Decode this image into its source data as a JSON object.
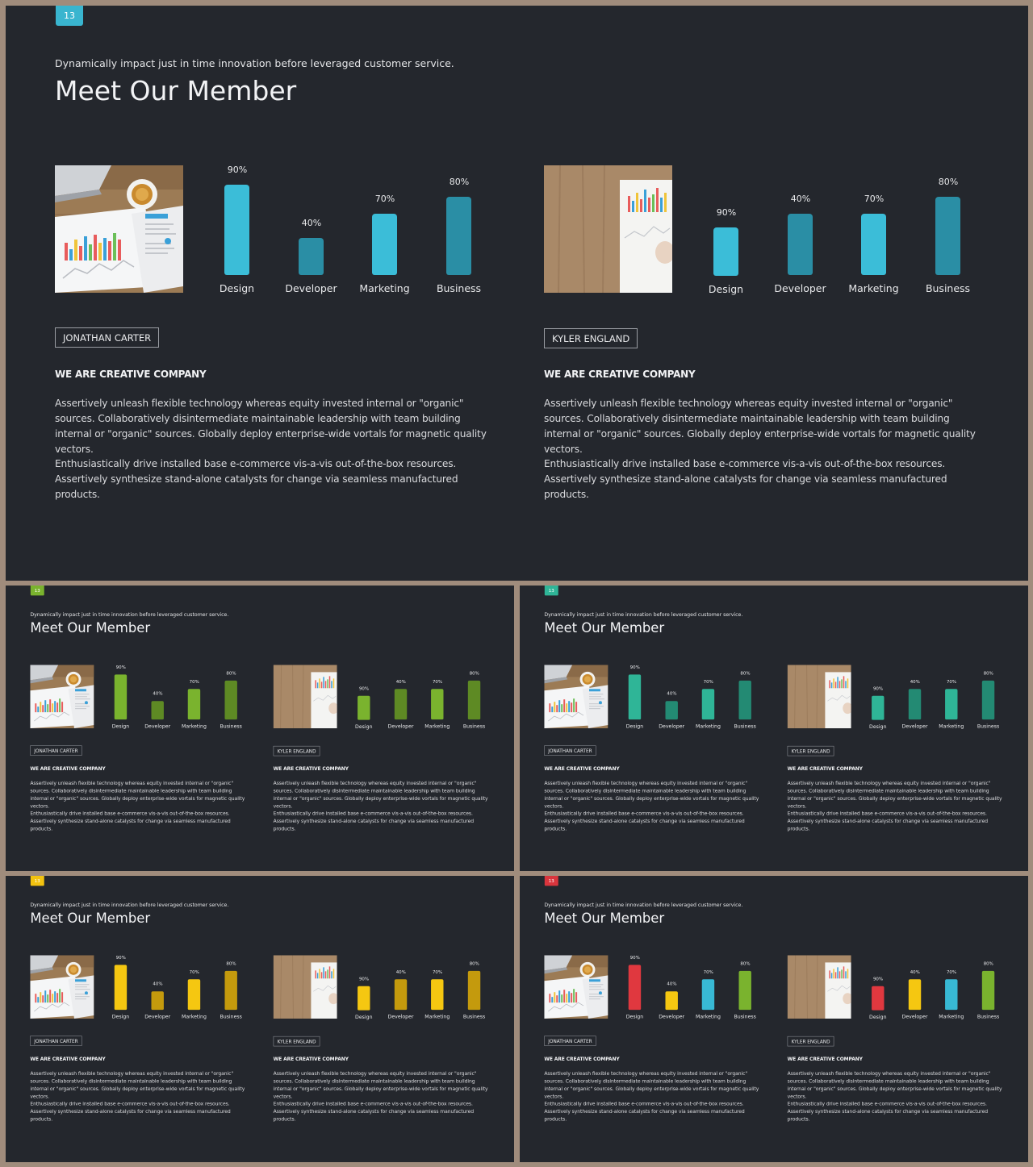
{
  "slides": [
    {
      "number": "13",
      "badge_color": "#39b5cf",
      "subtitle": "Dynamically impact just in time innovation  before leveraged customer service.",
      "title": "Meet Our Member",
      "members": [
        {
          "name": "JONATHAN CARTER",
          "company": "WE ARE CREATIVE COMPANY",
          "paragraph1": "Assertively unleash flexible technology whereas equity invested internal or \"organic\" sources. Collaboratively disintermediate maintainable leadership with team building internal or \"organic\" sources. Globally deploy enterprise-wide vortals for magnetic quality vectors.",
          "paragraph2": "Enthusiastically drive installed base e-commerce vis-a-vis out-of-the-box resources. Assertively synthesize stand-alone catalysts for change via seamless manufactured products.",
          "photo_icon": "laptop-coffee-report-photo",
          "chart_data": {
            "type": "bar",
            "categories": [
              "Design",
              "Developer",
              "Marketing",
              "Business"
            ],
            "values": [
              90,
              40,
              70,
              80
            ],
            "value_labels": [
              "90%",
              "40%",
              "70%",
              "80%"
            ],
            "colors": [
              "#3bbdd8",
              "#2a8ea5",
              "#3bbdd8",
              "#2a8ea5"
            ]
          }
        },
        {
          "name": "KYLER ENGLAND",
          "company": "WE ARE CREATIVE COMPANY",
          "paragraph1": "Assertively unleash flexible technology whereas equity invested internal or \"organic\" sources. Collaboratively disintermediate maintainable leadership with team building internal or \"organic\" sources. Globally deploy enterprise-wide vortals for magnetic quality vectors.",
          "paragraph2": "Enthusiastically drive installed base e-commerce vis-a-vis out-of-the-box resources. Assertively synthesize stand-alone catalysts for change via seamless manufactured products.",
          "photo_icon": "wood-desk-report-photo",
          "chart_data": {
            "type": "bar",
            "categories": [
              "Design",
              "Developer",
              "Marketing",
              "Business"
            ],
            "values": [
              90,
              40,
              70,
              80
            ],
            "value_labels": [
              "90%",
              "40%",
              "70%",
              "80%"
            ],
            "colors": [
              "#3bbdd8",
              "#2a8ea5",
              "#3bbdd8",
              "#2a8ea5"
            ]
          }
        }
      ]
    },
    {
      "number": "13",
      "badge_color": "#7ab32e",
      "subtitle": "Dynamically impact just in time innovation  before leveraged customer service.",
      "title": "Meet Our Member",
      "members": [
        {
          "name": "JONATHAN CARTER",
          "company": "WE ARE CREATIVE COMPANY",
          "paragraph1": "Assertively unleash flexible technology whereas equity invested internal or \"organic\" sources. Collaboratively disintermediate maintainable leadership with team building internal or \"organic\" sources. Globally deploy enterprise-wide vortals for magnetic quality vectors.",
          "paragraph2": "Enthusiastically drive installed base e-commerce vis-a-vis out-of-the-box resources. Assertively synthesize stand-alone catalysts for change via seamless manufactured products.",
          "photo_icon": "laptop-coffee-report-photo",
          "chart_data": {
            "type": "bar",
            "categories": [
              "Design",
              "Developer",
              "Marketing",
              "Business"
            ],
            "values": [
              90,
              40,
              70,
              80
            ],
            "value_labels": [
              "90%",
              "40%",
              "70%",
              "80%"
            ],
            "colors": [
              "#7ab32e",
              "#5e8a24",
              "#7ab32e",
              "#5e8a24"
            ]
          }
        },
        {
          "name": "KYLER ENGLAND",
          "company": "WE ARE CREATIVE COMPANY",
          "paragraph1": "Assertively unleash flexible technology whereas equity invested internal or \"organic\" sources. Collaboratively disintermediate maintainable leadership with team building internal or \"organic\" sources. Globally deploy enterprise-wide vortals for magnetic quality vectors.",
          "paragraph2": "Enthusiastically drive installed base e-commerce vis-a-vis out-of-the-box resources. Assertively synthesize stand-alone catalysts for change via seamless manufactured products.",
          "photo_icon": "wood-desk-report-photo",
          "chart_data": {
            "type": "bar",
            "categories": [
              "Design",
              "Developer",
              "Marketing",
              "Business"
            ],
            "values": [
              90,
              40,
              70,
              80
            ],
            "value_labels": [
              "90%",
              "40%",
              "70%",
              "80%"
            ],
            "colors": [
              "#7ab32e",
              "#5e8a24",
              "#7ab32e",
              "#5e8a24"
            ]
          }
        }
      ]
    },
    {
      "number": "13",
      "badge_color": "#2fb597",
      "subtitle": "Dynamically impact just in time innovation  before leveraged customer service.",
      "title": "Meet Our Member",
      "members": [
        {
          "name": "JONATHAN CARTER",
          "company": "WE ARE CREATIVE COMPANY",
          "paragraph1": "Assertively unleash flexible technology whereas equity invested internal or \"organic\" sources. Collaboratively disintermediate maintainable leadership with team building internal or \"organic\" sources. Globally deploy enterprise-wide vortals for magnetic quality vectors.",
          "paragraph2": "Enthusiastically drive installed base e-commerce vis-a-vis out-of-the-box resources. Assertively synthesize stand-alone catalysts for change via seamless manufactured products.",
          "photo_icon": "laptop-coffee-report-photo",
          "chart_data": {
            "type": "bar",
            "categories": [
              "Design",
              "Developer",
              "Marketing",
              "Business"
            ],
            "values": [
              90,
              40,
              70,
              80
            ],
            "value_labels": [
              "90%",
              "40%",
              "70%",
              "80%"
            ],
            "colors": [
              "#2fb597",
              "#238a73",
              "#2fb597",
              "#238a73"
            ]
          }
        },
        {
          "name": "KYLER ENGLAND",
          "company": "WE ARE CREATIVE COMPANY",
          "paragraph1": "Assertively unleash flexible technology whereas equity invested internal or \"organic\" sources. Collaboratively disintermediate maintainable leadership with team building internal or \"organic\" sources. Globally deploy enterprise-wide vortals for magnetic quality vectors.",
          "paragraph2": "Enthusiastically drive installed base e-commerce vis-a-vis out-of-the-box resources. Assertively synthesize stand-alone catalysts for change via seamless manufactured products.",
          "photo_icon": "wood-desk-report-photo",
          "chart_data": {
            "type": "bar",
            "categories": [
              "Design",
              "Developer",
              "Marketing",
              "Business"
            ],
            "values": [
              90,
              40,
              70,
              80
            ],
            "value_labels": [
              "90%",
              "40%",
              "70%",
              "80%"
            ],
            "colors": [
              "#2fb597",
              "#238a73",
              "#2fb597",
              "#238a73"
            ]
          }
        }
      ]
    },
    {
      "number": "13",
      "badge_color": "#f2c20f",
      "subtitle": "Dynamically impact just in time innovation  before leveraged customer service.",
      "title": "Meet Our Member",
      "members": [
        {
          "name": "JONATHAN CARTER",
          "company": "WE ARE CREATIVE COMPANY",
          "paragraph1": "Assertively unleash flexible technology whereas equity invested internal or \"organic\" sources. Collaboratively disintermediate maintainable leadership with team building internal or \"organic\" sources. Globally deploy enterprise-wide vortals for magnetic quality vectors.",
          "paragraph2": "Enthusiastically drive installed base e-commerce vis-a-vis out-of-the-box resources. Assertively synthesize stand-alone catalysts for change via seamless manufactured products.",
          "photo_icon": "laptop-coffee-report-photo",
          "chart_data": {
            "type": "bar",
            "categories": [
              "Design",
              "Developer",
              "Marketing",
              "Business"
            ],
            "values": [
              90,
              40,
              70,
              80
            ],
            "value_labels": [
              "90%",
              "40%",
              "70%",
              "80%"
            ],
            "colors": [
              "#f5c711",
              "#c49a0d",
              "#f5c711",
              "#c49a0d"
            ]
          }
        },
        {
          "name": "KYLER ENGLAND",
          "company": "WE ARE CREATIVE COMPANY",
          "paragraph1": "Assertively unleash flexible technology whereas equity invested internal or \"organic\" sources. Collaboratively disintermediate maintainable leadership with team building internal or \"organic\" sources. Globally deploy enterprise-wide vortals for magnetic quality vectors.",
          "paragraph2": "Enthusiastically drive installed base e-commerce vis-a-vis out-of-the-box resources. Assertively synthesize stand-alone catalysts for change via seamless manufactured products.",
          "photo_icon": "wood-desk-report-photo",
          "chart_data": {
            "type": "bar",
            "categories": [
              "Design",
              "Developer",
              "Marketing",
              "Business"
            ],
            "values": [
              90,
              40,
              70,
              80
            ],
            "value_labels": [
              "90%",
              "40%",
              "70%",
              "80%"
            ],
            "colors": [
              "#f5c711",
              "#c49a0d",
              "#f5c711",
              "#c49a0d"
            ]
          }
        }
      ]
    },
    {
      "number": "13",
      "badge_color": "#d9353d",
      "subtitle": "Dynamically impact just in time innovation  before leveraged customer service.",
      "title": "Meet Our Member",
      "members": [
        {
          "name": "JONATHAN CARTER",
          "company": "WE ARE CREATIVE COMPANY",
          "paragraph1": "Assertively unleash flexible technology whereas equity invested internal or \"organic\" sources. Collaboratively disintermediate maintainable leadership with team building internal or \"organic\" sources. Globally deploy enterprise-wide vortals for magnetic quality vectors.",
          "paragraph2": "Enthusiastically drive installed base e-commerce vis-a-vis out-of-the-box resources. Assertively synthesize stand-alone catalysts for change via seamless manufactured products.",
          "photo_icon": "laptop-coffee-report-photo",
          "chart_data": {
            "type": "bar",
            "categories": [
              "Design",
              "Developer",
              "Marketing",
              "Business"
            ],
            "values": [
              90,
              40,
              70,
              80
            ],
            "value_labels": [
              "90%",
              "40%",
              "70%",
              "80%"
            ],
            "colors": [
              "#e0383f",
              "#f5c711",
              "#38b9d4",
              "#7ab32e"
            ]
          }
        },
        {
          "name": "KYLER ENGLAND",
          "company": "WE ARE CREATIVE COMPANY",
          "paragraph1": "Assertively unleash flexible technology whereas equity invested internal or \"organic\" sources. Collaboratively disintermediate maintainable leadership with team building internal or \"organic\" sources. Globally deploy enterprise-wide vortals for magnetic quality vectors.",
          "paragraph2": "Enthusiastically drive installed base e-commerce vis-a-vis out-of-the-box resources. Assertively synthesize stand-alone catalysts for change via seamless manufactured products.",
          "photo_icon": "wood-desk-report-photo",
          "chart_data": {
            "type": "bar",
            "categories": [
              "Design",
              "Developer",
              "Marketing",
              "Business"
            ],
            "values": [
              90,
              40,
              70,
              80
            ],
            "value_labels": [
              "90%",
              "40%",
              "70%",
              "80%"
            ],
            "colors": [
              "#e0383f",
              "#f5c711",
              "#38b9d4",
              "#7ab32e"
            ]
          }
        }
      ]
    }
  ]
}
